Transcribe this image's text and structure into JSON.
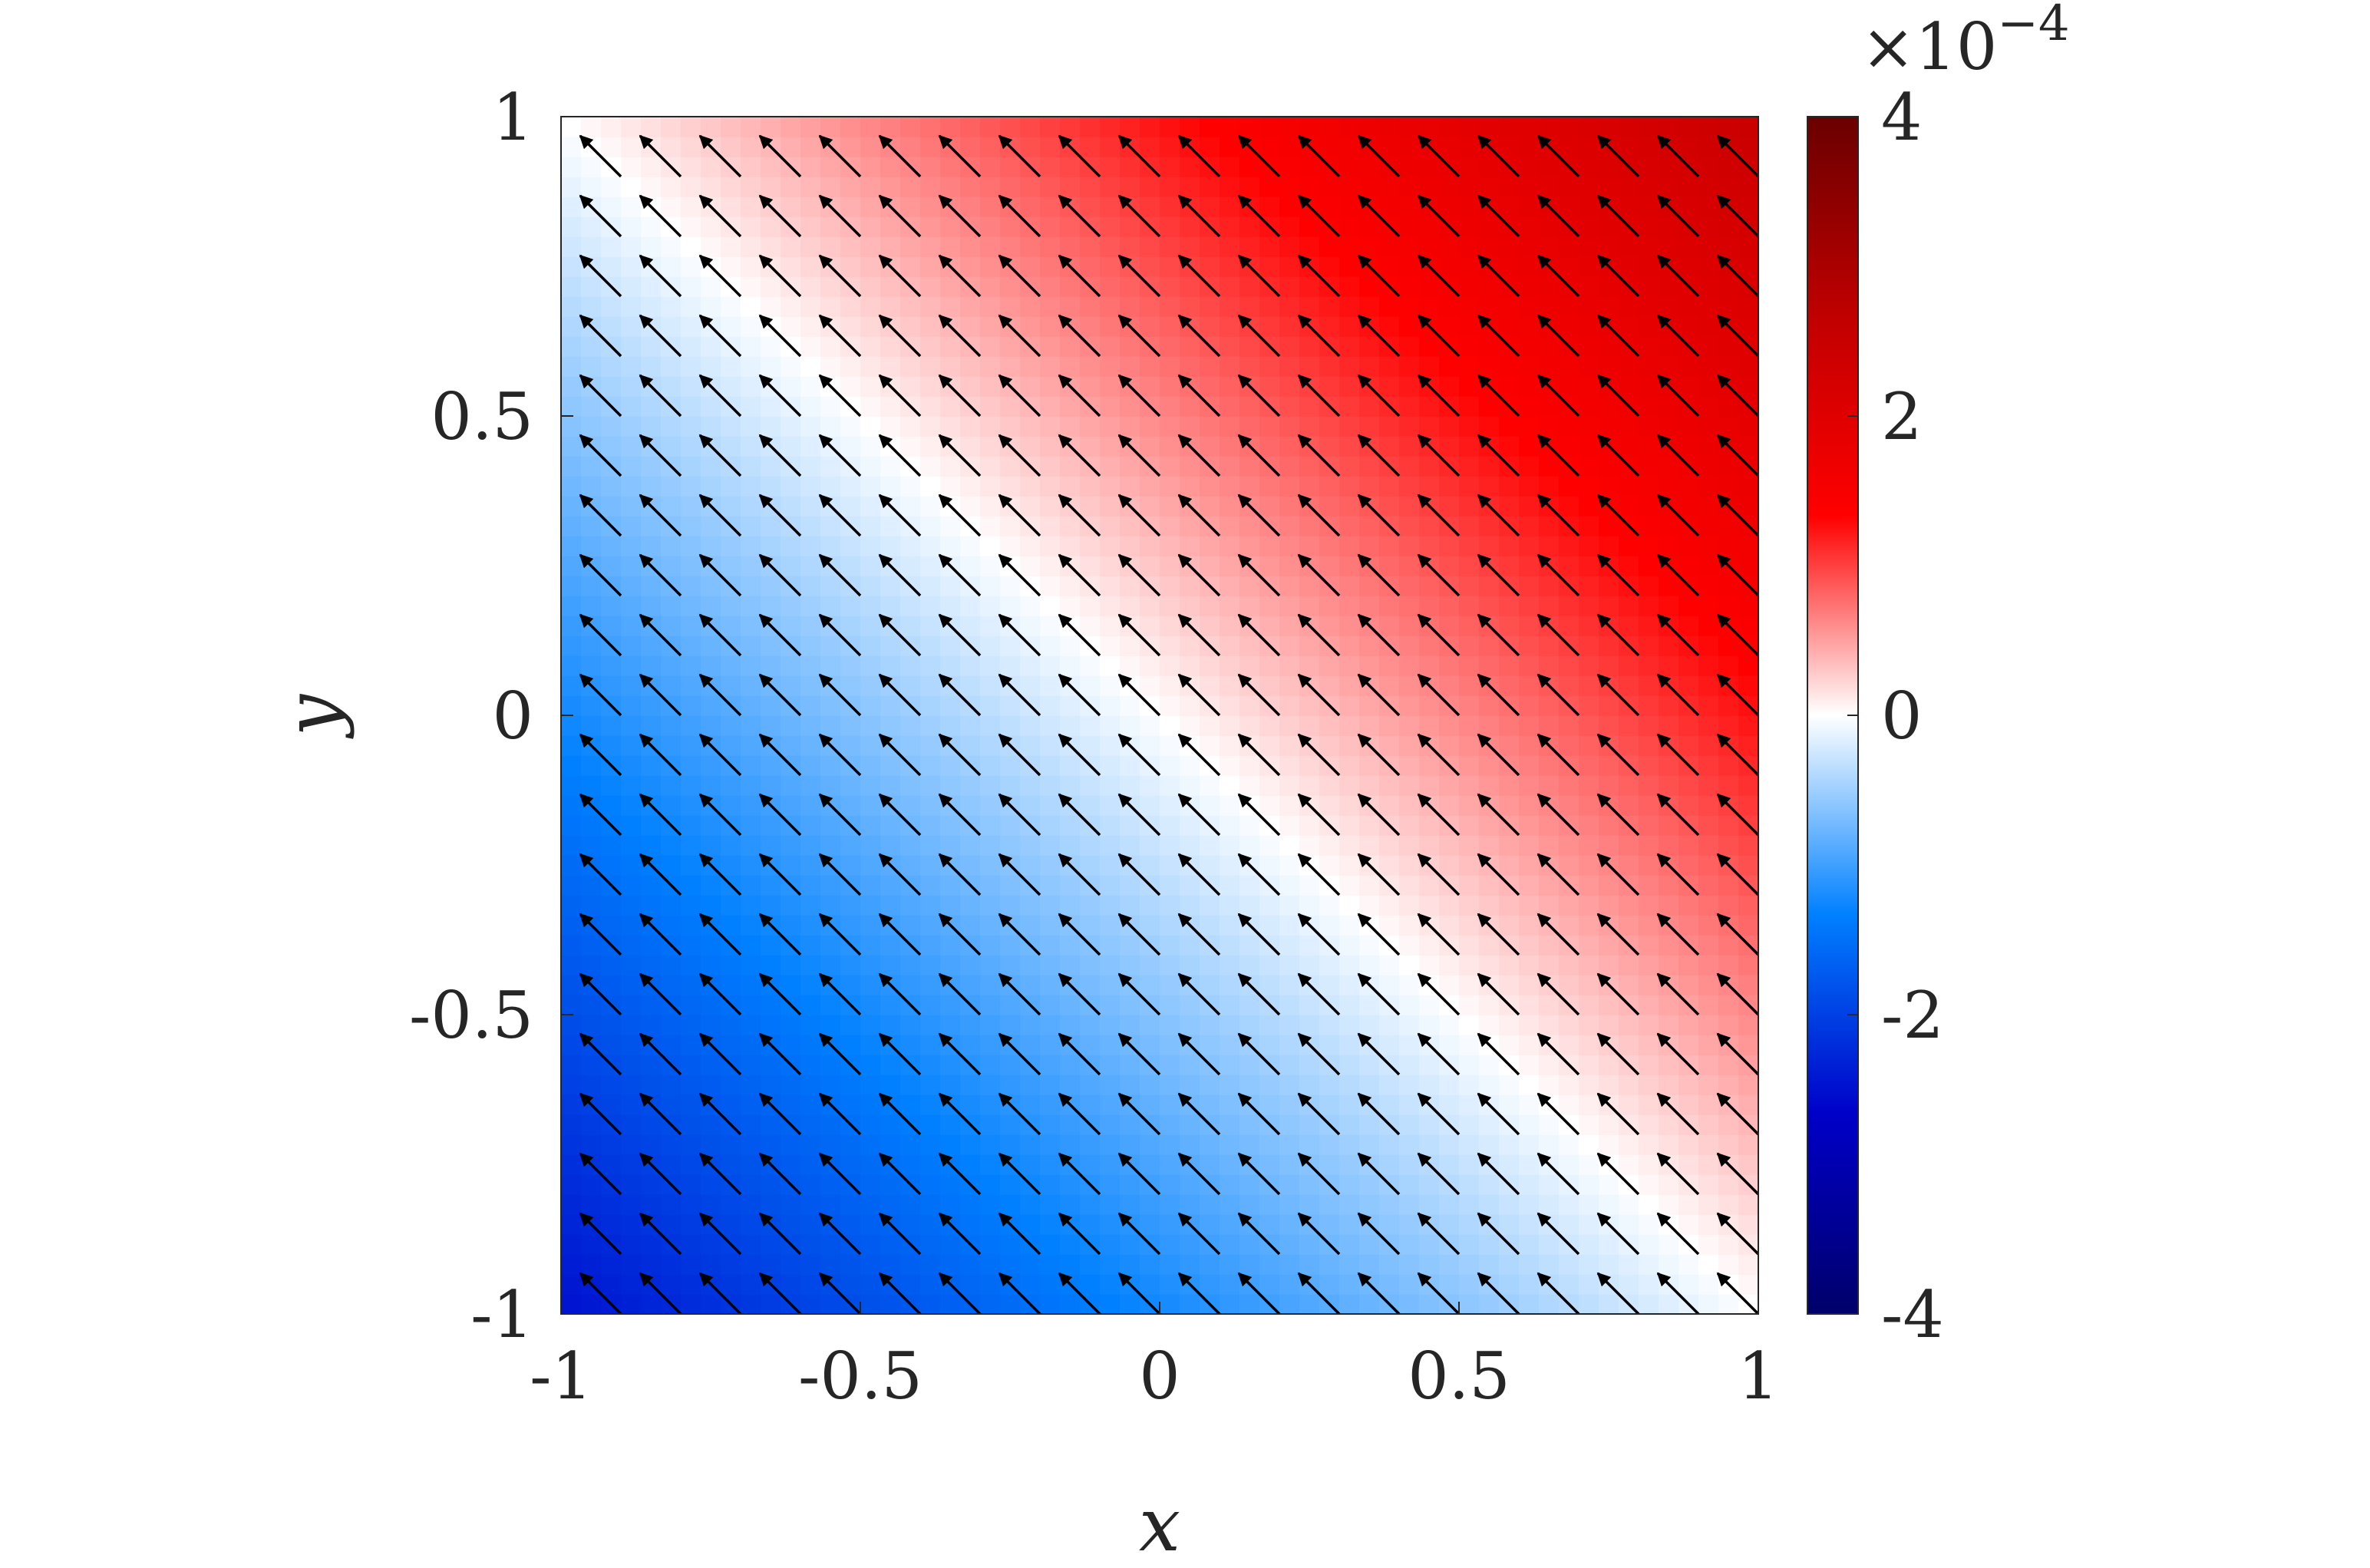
{
  "chart_data": {
    "type": "heatmap",
    "overlay": "quiver",
    "title": "",
    "xlabel": "x",
    "ylabel": "y",
    "xlim": [
      -1,
      1
    ],
    "ylim": [
      -1,
      1
    ],
    "xticks": [
      "-1",
      "-0.5",
      "0",
      "0.5",
      "1"
    ],
    "yticks": [
      "-1",
      "-0.5",
      "0",
      "0.5",
      "1"
    ],
    "field": {
      "description": "linear scalar field increasing toward upper-right, zero along x + y = 0",
      "value_at_corner_xmin_ymin": -2.5,
      "value_at_corner_xmax_ymax": 2.5,
      "grid_points_per_axis": 21,
      "arrow_direction": [
        -1,
        1
      ]
    },
    "colorbar": {
      "min": -4,
      "max": 4,
      "ticks": [
        "-4",
        "-2",
        "0",
        "2",
        "4"
      ],
      "scale_base": "×10",
      "scale_exponent": "−4",
      "colormap": [
        "#00006a",
        "#0000c8",
        "#0080ff",
        "#ffffff",
        "#ff0000",
        "#c00000",
        "#6a0000"
      ]
    },
    "grid": false
  }
}
